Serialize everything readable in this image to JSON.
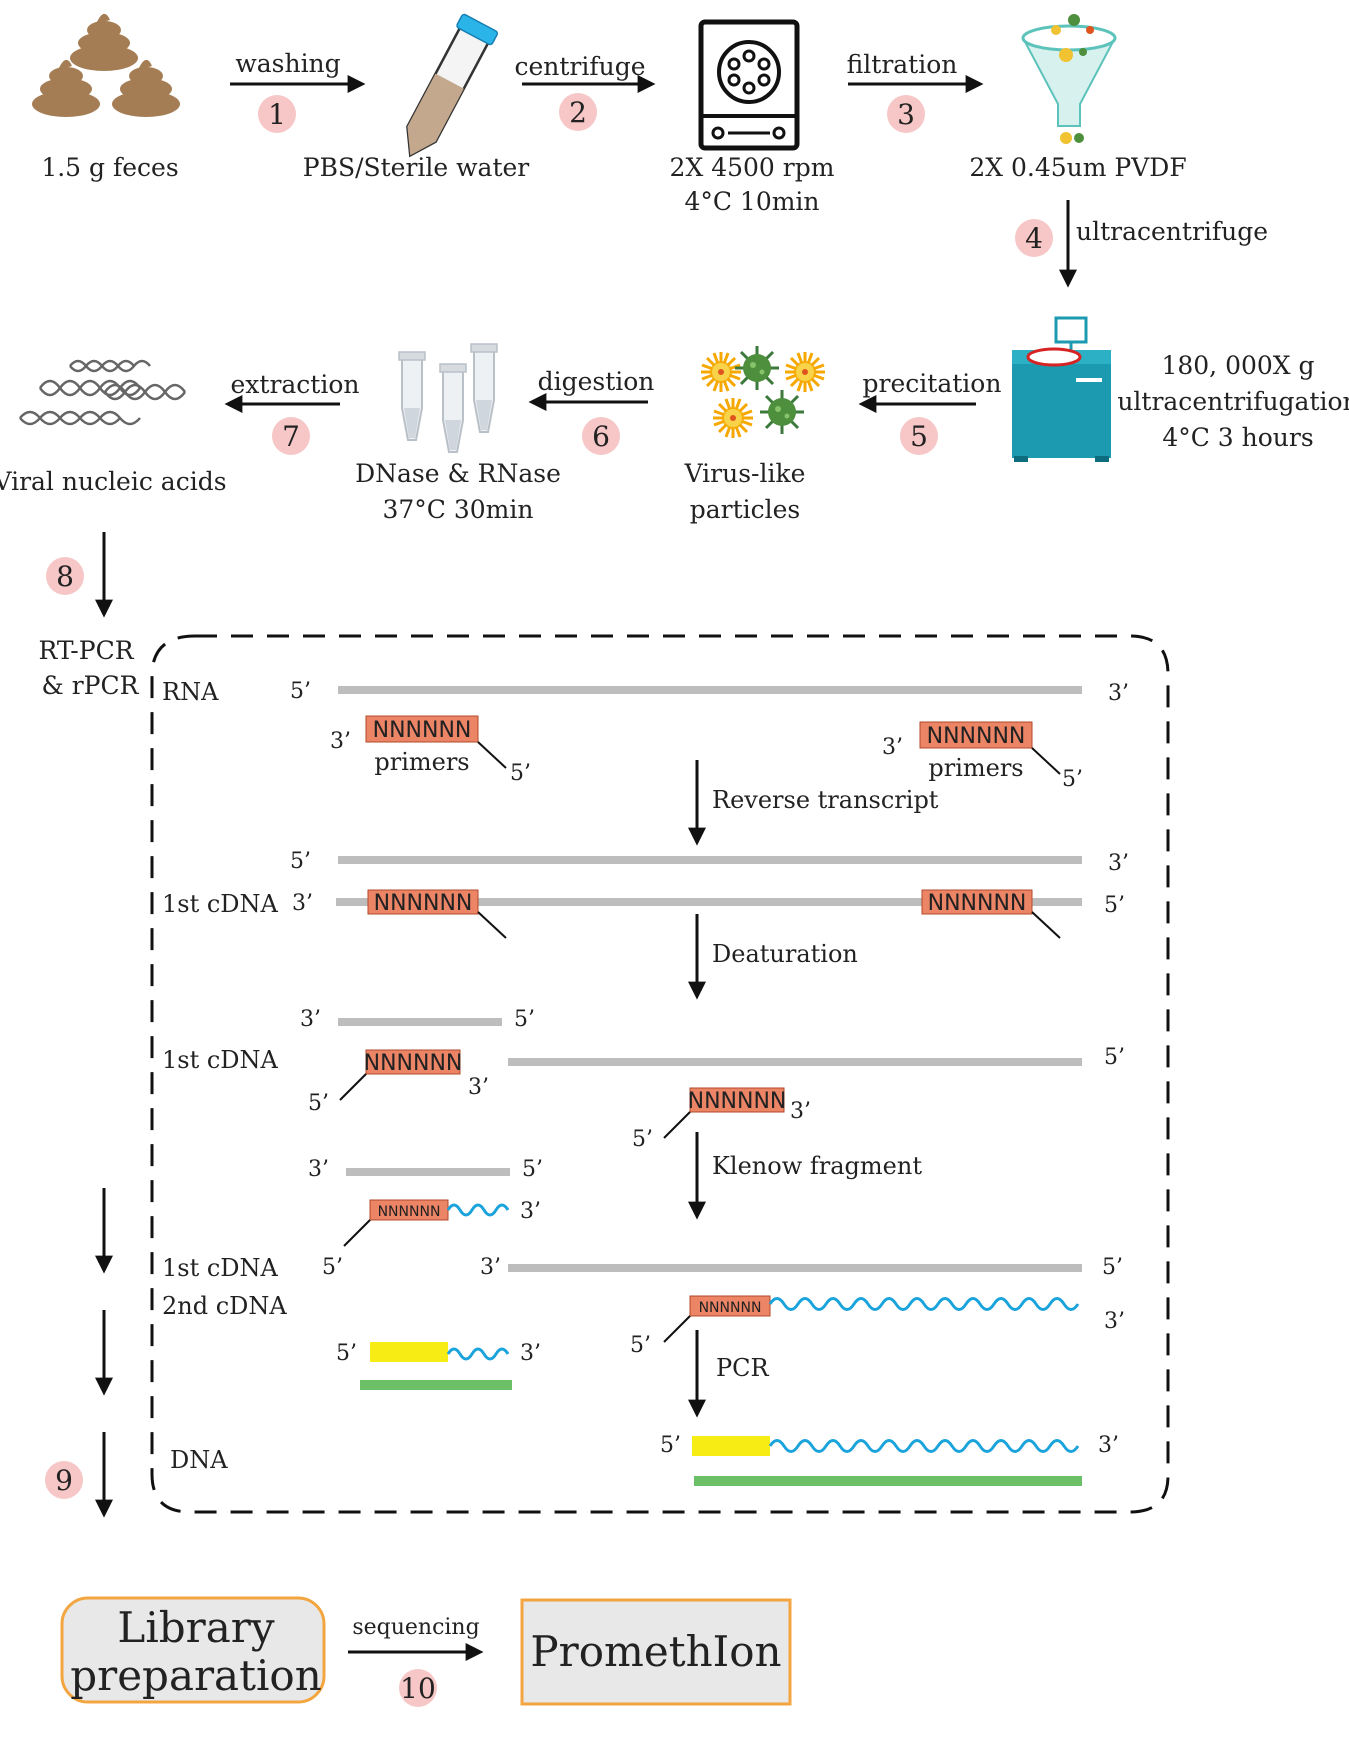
{
  "colors": {
    "circle": "#f7c6c6",
    "primer": "#ec8466",
    "strand": "#bdbdbd",
    "wave": "#1ba3dc",
    "yellow": "#f7ec13",
    "green": "#6cc067",
    "box_border": "#f3a540",
    "box_fill": "#e8e8e8",
    "ultracentrifuge": "#1c9bb0"
  },
  "top": {
    "feces_label": "1.5 g feces",
    "washing": "washing",
    "pbs_label": "PBS/Sterile water",
    "centrifuge": "centrifuge",
    "rpm_line1": "2X 4500 rpm",
    "rpm_line2": "4°C 10min",
    "filtration": "filtration",
    "pvdf_label": "2X 0.45um PVDF",
    "ultracentrifuge": "ultracentrifuge",
    "uc_line1": "180, 000X g",
    "uc_line2": "ultracentrifugation",
    "uc_line3": "4°C  3 hours",
    "precitation": "precitation",
    "vlp_line1": "Virus-like",
    "vlp_line2": "particles",
    "digestion": "digestion",
    "dnase_line1": "DNase & RNase",
    "dnase_line2": "37°C  30min",
    "extraction": "extraction",
    "viral_label": "Viral nucleic acids"
  },
  "steps": [
    "1",
    "2",
    "3",
    "4",
    "5",
    "6",
    "7",
    "8",
    "9",
    "10"
  ],
  "pcr": {
    "side_line1": "RT-PCR",
    "side_line2": "& rPCR",
    "rna": "RNA",
    "five": "5’",
    "three": "3’",
    "nnn": "NNNNNN",
    "primers": "primers",
    "reverse_transcript": "Reverse transcript",
    "first_cdna": "1st cDNA",
    "second_cdna": "2nd cDNA",
    "deaturation": "Deaturation",
    "klenow": "Klenow fragment",
    "pcr": "PCR",
    "dna": "DNA"
  },
  "bottom": {
    "library_line1": "Library",
    "library_line2": "preparation",
    "sequencing": "sequencing",
    "promethion": "PromethIon"
  }
}
